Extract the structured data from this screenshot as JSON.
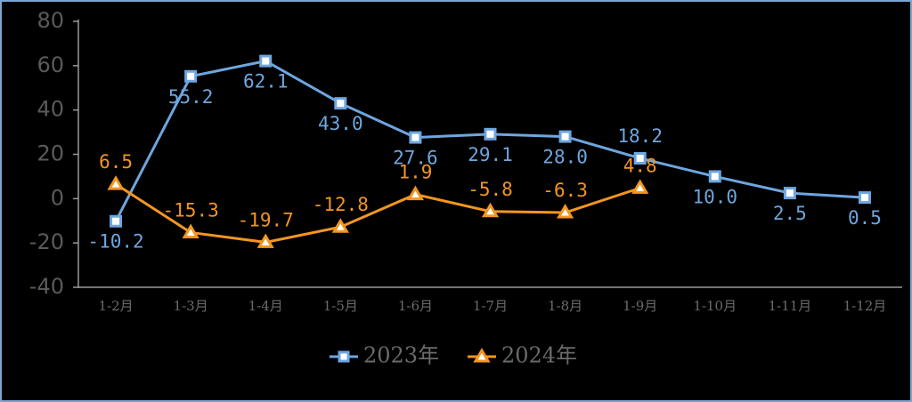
{
  "chart_data": {
    "type": "line",
    "categories": [
      "1-2月",
      "1-3月",
      "1-4月",
      "1-5月",
      "1-6月",
      "1-7月",
      "1-8月",
      "1-9月",
      "1-10月",
      "1-11月",
      "1-12月"
    ],
    "series": [
      {
        "name": "2023年",
        "color": "#6ea6e0",
        "values": [
          -10.2,
          55.2,
          62.1,
          43.0,
          27.6,
          29.1,
          28.0,
          18.2,
          10.0,
          2.5,
          0.5
        ],
        "value_labels": [
          "-10.2",
          "55.2",
          "62.1",
          "43.0",
          "27.6",
          "29.1",
          "28.0",
          "18.2",
          "10.0",
          "2.5",
          "0.5"
        ]
      },
      {
        "name": "2024年",
        "color": "#f3961f",
        "values": [
          6.5,
          -15.3,
          -19.7,
          -12.8,
          1.9,
          -5.8,
          -6.3,
          4.8,
          null,
          null,
          null
        ],
        "value_labels": [
          "6.5",
          "-15.3",
          "-19.7",
          "-12.8",
          "1.9",
          "-5.8",
          "-6.3",
          "4.8",
          null,
          null,
          null
        ]
      }
    ],
    "ylim": [
      -40,
      80
    ],
    "yticks": [
      -40,
      -20,
      0,
      20,
      40,
      60,
      80
    ]
  }
}
